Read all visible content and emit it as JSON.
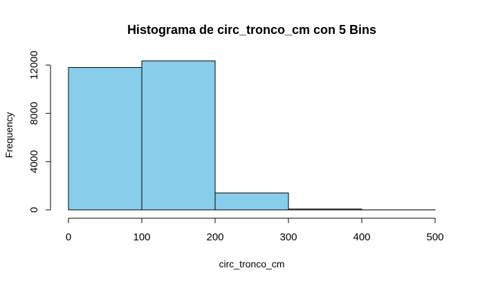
{
  "chart_data": {
    "type": "bar",
    "title": "Histograma de circ_tronco_cm con 5 Bins",
    "xlabel": "circ_tronco_cm",
    "ylabel": "Frequency",
    "bins": [
      {
        "start": 0,
        "end": 100,
        "count": 11800
      },
      {
        "start": 100,
        "end": 200,
        "count": 12350
      },
      {
        "start": 200,
        "end": 300,
        "count": 1400
      },
      {
        "start": 300,
        "end": 400,
        "count": 70
      },
      {
        "start": 400,
        "end": 500,
        "count": 5
      }
    ],
    "xticks": [
      "0",
      "100",
      "200",
      "300",
      "400",
      "500"
    ],
    "yticks": [
      "0",
      "4000",
      "8000",
      "12000"
    ],
    "xlim": [
      0,
      500
    ],
    "ylim": [
      0,
      12000
    ],
    "bar_color": "#87CEEB",
    "grid": false,
    "legend": "none"
  }
}
